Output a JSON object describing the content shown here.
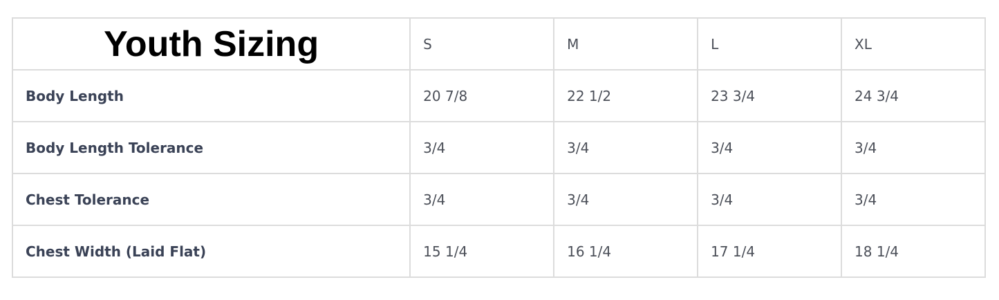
{
  "table": {
    "title": "Youth Sizing",
    "sizes": [
      "S",
      "M",
      "L",
      "XL"
    ],
    "rows": [
      {
        "label": "Body Length",
        "values": [
          "20 7/8",
          "22 1/2",
          "23 3/4",
          "24 3/4"
        ]
      },
      {
        "label": "Body Length Tolerance",
        "values": [
          "3/4",
          "3/4",
          "3/4",
          "3/4"
        ]
      },
      {
        "label": "Chest Tolerance",
        "values": [
          "3/4",
          "3/4",
          "3/4",
          "3/4"
        ]
      },
      {
        "label": "Chest Width (Laid Flat)",
        "values": [
          "15 1/4",
          "16 1/4",
          "17 1/4",
          "18 1/4"
        ]
      }
    ]
  }
}
